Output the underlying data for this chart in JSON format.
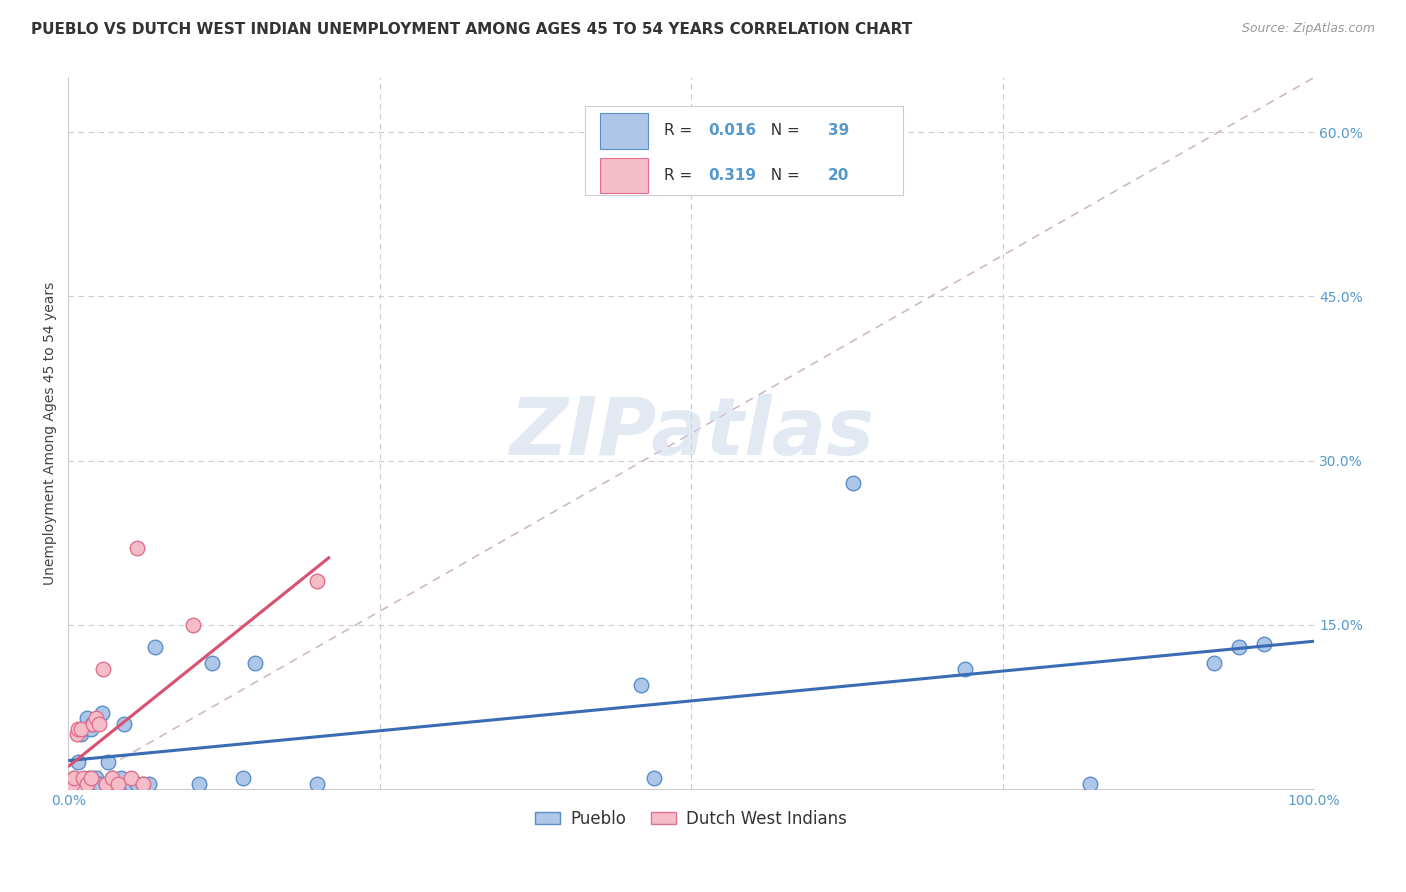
{
  "title": "PUEBLO VS DUTCH WEST INDIAN UNEMPLOYMENT AMONG AGES 45 TO 54 YEARS CORRELATION CHART",
  "source": "Source: ZipAtlas.com",
  "ylabel": "Unemployment Among Ages 45 to 54 years",
  "xlim": [
    0,
    1.0
  ],
  "ylim": [
    0,
    0.65
  ],
  "xticks": [
    0.0,
    0.25,
    0.5,
    0.75,
    1.0
  ],
  "xticklabels": [
    "0.0%",
    "",
    "",
    "",
    "100.0%"
  ],
  "yticks": [
    0.0,
    0.15,
    0.3,
    0.45,
    0.6
  ],
  "yticklabels": [
    "",
    "15.0%",
    "30.0%",
    "45.0%",
    "60.0%"
  ],
  "pueblo_R": "0.016",
  "pueblo_N": "39",
  "dutch_R": "0.319",
  "dutch_N": "20",
  "pueblo_color": "#aec6e8",
  "dutch_color": "#f5bdc8",
  "pueblo_edge": "#5b8fc9",
  "dutch_edge": "#e07090",
  "trend_pueblo_color": "#3a6bb5",
  "trend_dutch_color": "#d95070",
  "trend_gray_color": "#d0b8c8",
  "watermark": "ZIPatlas",
  "pueblo_x": [
    0.005,
    0.008,
    0.01,
    0.012,
    0.015,
    0.017,
    0.018,
    0.019,
    0.02,
    0.022,
    0.024,
    0.025,
    0.027,
    0.03,
    0.032,
    0.035,
    0.038,
    0.04,
    0.042,
    0.045,
    0.048,
    0.05,
    0.055,
    0.06,
    0.065,
    0.07,
    0.105,
    0.115,
    0.14,
    0.15,
    0.2,
    0.46,
    0.47,
    0.63,
    0.72,
    0.82,
    0.92,
    0.94,
    0.96
  ],
  "pueblo_y": [
    0.01,
    0.025,
    0.05,
    0.055,
    0.065,
    0.01,
    0.055,
    0.06,
    0.01,
    0.01,
    0.005,
    0.005,
    0.07,
    0.005,
    0.025,
    0.01,
    0.005,
    0.005,
    0.01,
    0.06,
    0.005,
    0.005,
    0.005,
    0.005,
    0.005,
    0.13,
    0.005,
    0.115,
    0.01,
    0.115,
    0.005,
    0.095,
    0.01,
    0.28,
    0.11,
    0.005,
    0.115,
    0.13,
    0.133
  ],
  "dutch_x": [
    0.003,
    0.005,
    0.007,
    0.008,
    0.01,
    0.012,
    0.015,
    0.018,
    0.02,
    0.022,
    0.025,
    0.028,
    0.03,
    0.035,
    0.04,
    0.05,
    0.055,
    0.06,
    0.1,
    0.2
  ],
  "dutch_y": [
    0.005,
    0.01,
    0.05,
    0.055,
    0.055,
    0.01,
    0.005,
    0.01,
    0.06,
    0.065,
    0.06,
    0.11,
    0.005,
    0.01,
    0.005,
    0.01,
    0.22,
    0.005,
    0.15,
    0.19
  ],
  "marker_size": 110,
  "title_fontsize": 11,
  "label_fontsize": 10,
  "tick_fontsize": 10,
  "legend_fontsize": 12,
  "background_color": "#ffffff",
  "grid_color": "#cccccc",
  "tick_color": "#5599cc"
}
